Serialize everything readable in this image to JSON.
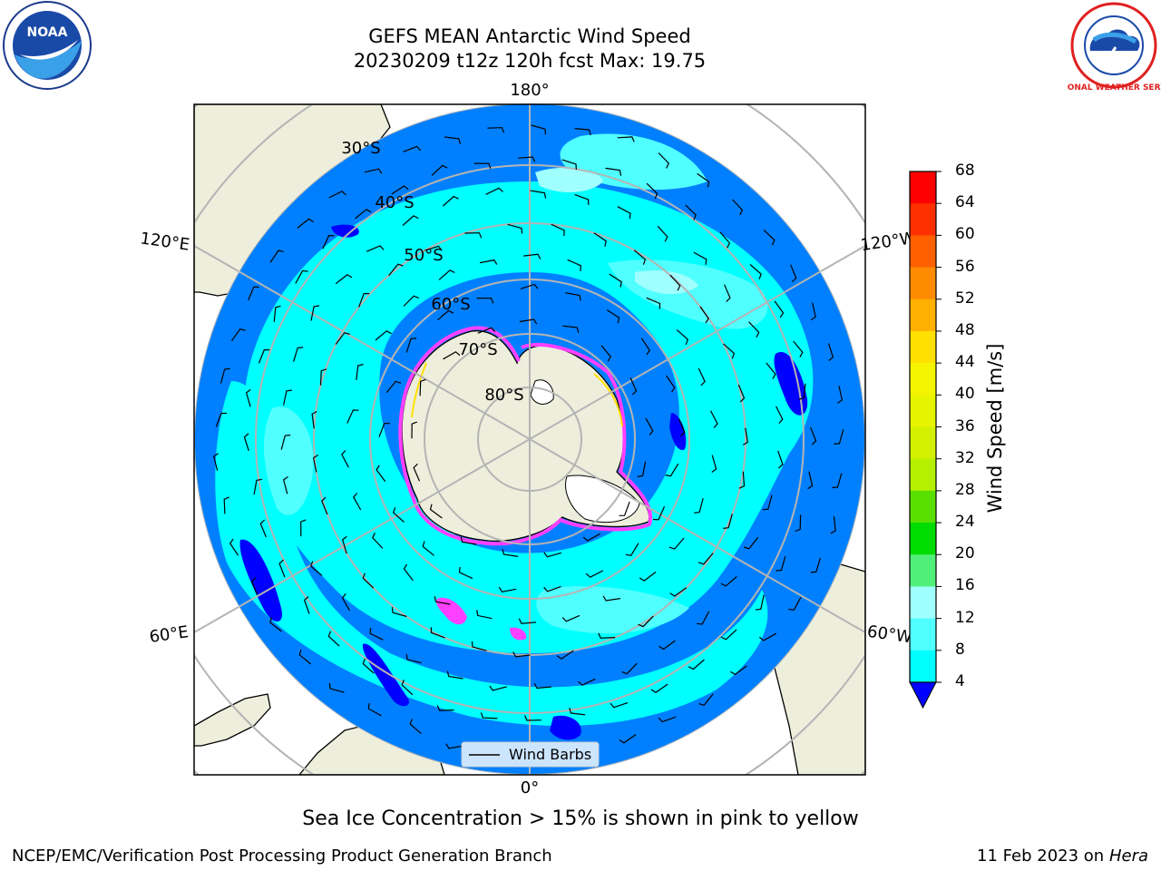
{
  "title": {
    "line1": "GEFS MEAN Antarctic Wind Speed",
    "line2": "20230209 t12z 120h fcst   Max: 19.75"
  },
  "longitude_labels": {
    "top": "180°",
    "bottom": "0°",
    "upper_left": "120°E",
    "upper_right": "120°W",
    "lower_left": "60°E",
    "lower_right": "60°W"
  },
  "latitude_labels": [
    "30°S",
    "40°S",
    "50°S",
    "60°S",
    "70°S",
    "80°S"
  ],
  "legend": {
    "label": "Wind Barbs"
  },
  "colorbar": {
    "label": "Wind Speed [m/s]",
    "ticks": [
      "68",
      "64",
      "60",
      "56",
      "52",
      "48",
      "44",
      "40",
      "36",
      "32",
      "28",
      "24",
      "20",
      "16",
      "12",
      "8",
      "4"
    ],
    "colors": [
      "#ff0000",
      "#ff3000",
      "#ff6000",
      "#ff8c00",
      "#ffb000",
      "#ffe000",
      "#f4f400",
      "#e6f400",
      "#d2f000",
      "#b4f000",
      "#5ae000",
      "#00dc00",
      "#50f078",
      "#a0ffff",
      "#50ffff",
      "#00ffff",
      "#0080ff"
    ],
    "extend_color": "#0000ff"
  },
  "footer": {
    "sea_ice_note": "Sea Ice Concentration > 15% is shown in pink to yellow",
    "branch": "NCEP/EMC/Verification Post Processing Product Generation Branch",
    "date": "11 Feb 2023 on",
    "machine": "Hera"
  },
  "logos": {
    "left": "NOAA",
    "right": "NATIONAL WEATHER SERVICE"
  },
  "colors": {
    "ocean_base": "#0080ff",
    "land": "#eeeedc",
    "ice_edge": "#ff40ff",
    "grid": "#b4b4b4"
  }
}
